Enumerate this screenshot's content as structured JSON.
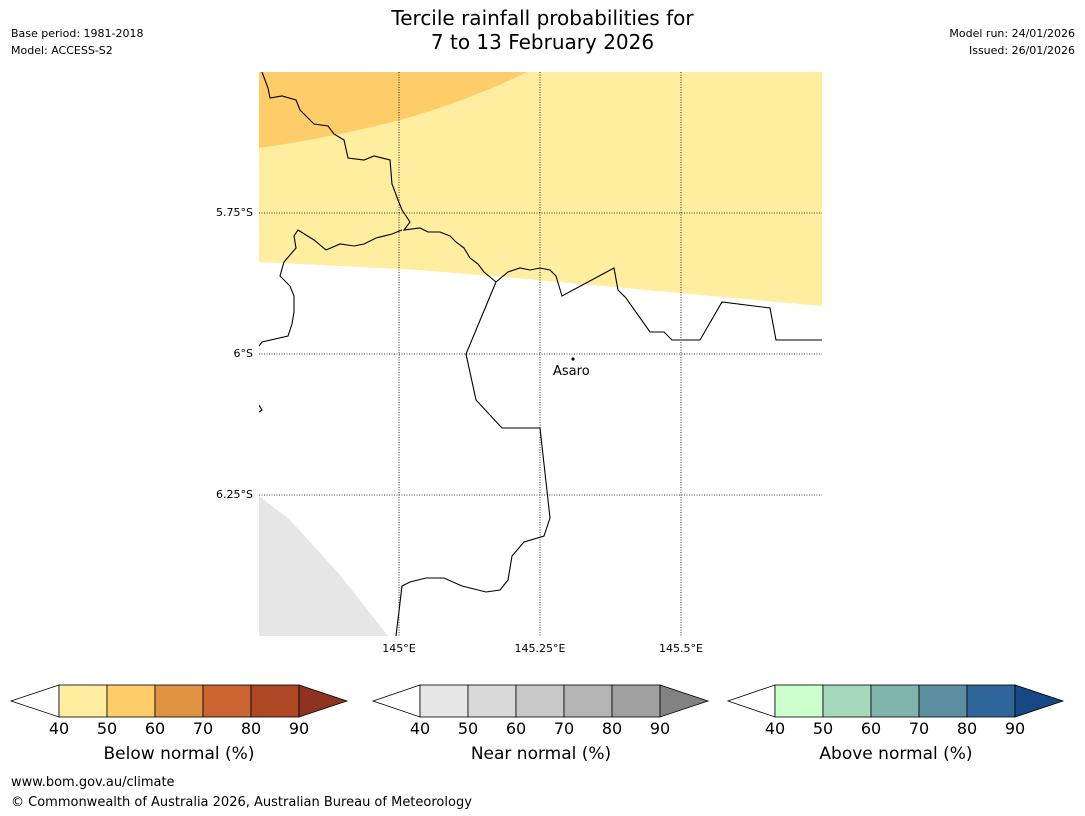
{
  "title": {
    "line1": "Tercile rainfall probabilities for",
    "line2": "7 to 13 February 2026"
  },
  "meta_left": {
    "base_period": "Base period: 1981-2018",
    "model": "Model: ACCESS-S2"
  },
  "meta_right": {
    "model_run": "Model run: 24/01/2026",
    "issued": "Issued: 26/01/2026"
  },
  "map": {
    "lat_labels": [
      "5.75°S",
      "6°S",
      "6.25°S"
    ],
    "lon_labels": [
      "145°E",
      "145.25°E",
      "145.5°E"
    ],
    "place_label": "Asaro",
    "shading_categories": [
      {
        "category": "Below normal",
        "range": "40-50",
        "color": "#ffeda0"
      },
      {
        "category": "Below normal",
        "range": "50-60",
        "color": "#fecc68"
      },
      {
        "category": "Near normal / no data",
        "color": "#e6e6e6"
      }
    ]
  },
  "colorbars": [
    {
      "label": "Below normal (%)",
      "ticks": [
        "40",
        "50",
        "60",
        "70",
        "80",
        "90"
      ],
      "colors": [
        "#ffeda0",
        "#fecc68",
        "#e09342",
        "#cc6533",
        "#ad4724",
        "#8e3320"
      ]
    },
    {
      "label": "Near normal (%)",
      "ticks": [
        "40",
        "50",
        "60",
        "70",
        "80",
        "90"
      ],
      "colors": [
        "#e6e6e6",
        "#d9d9d9",
        "#c8c8c8",
        "#b4b4b4",
        "#a0a0a0",
        "#828282"
      ]
    },
    {
      "label": "Above normal (%)",
      "ticks": [
        "40",
        "50",
        "60",
        "70",
        "80",
        "90"
      ],
      "colors": [
        "#ccffcc",
        "#a4d9bb",
        "#80b5ae",
        "#5b8f9f",
        "#306599",
        "#164983"
      ]
    }
  ],
  "footer": {
    "url": "www.bom.gov.au/climate",
    "copyright": "© Commonwealth of Australia 2026, Australian Bureau of Meteorology"
  }
}
